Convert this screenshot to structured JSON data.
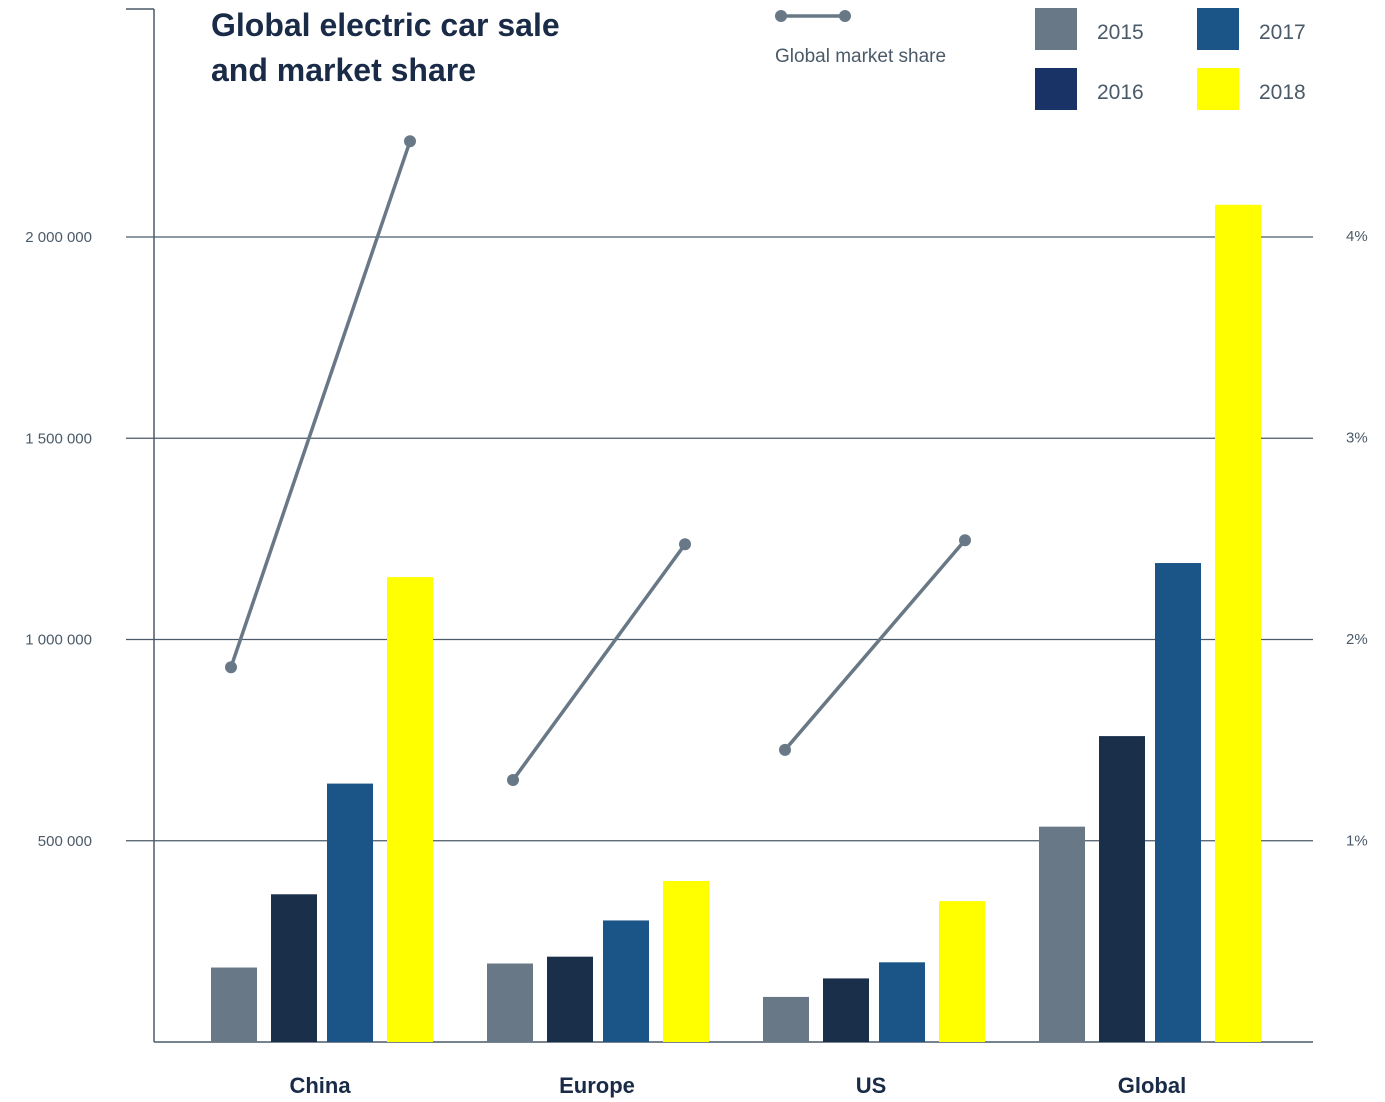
{
  "chart_data": {
    "type": "bar",
    "title_lines": [
      "Global electric car sale",
      "and market share"
    ],
    "categories": [
      "China",
      "Europe",
      "US",
      "Global"
    ],
    "series": [
      {
        "name": "2015",
        "values": [
          185000,
          195000,
          112000,
          535000
        ]
      },
      {
        "name": "2016",
        "values": [
          367000,
          212000,
          158000,
          760000
        ]
      },
      {
        "name": "2017",
        "values": [
          642000,
          302000,
          198000,
          1190000
        ]
      },
      {
        "name": "2018",
        "values": [
          1155000,
          400000,
          350000,
          2080000
        ]
      }
    ],
    "market_share": {
      "name": "Global market share",
      "lines": [
        {
          "category": "China",
          "start": 1.86,
          "end": 4.47
        },
        {
          "category": "Europe",
          "start": 1.3,
          "end": 2.47
        },
        {
          "category": "US",
          "start": 1.45,
          "end": 2.49
        }
      ]
    },
    "y_left": {
      "ticks": [
        500000,
        1000000,
        1500000,
        2000000
      ],
      "tick_labels": [
        "500 000",
        "1 000 000",
        "1 500 000",
        "2 000 000"
      ],
      "min": 0
    },
    "y_right": {
      "ticks": [
        1,
        2,
        3,
        4
      ],
      "tick_labels": [
        "1%",
        "2%",
        "3%",
        "4%"
      ],
      "min": 0
    },
    "grid": true,
    "legend_position": "top-right",
    "colors": {
      "2015": "#697886",
      "2016": "#1a2f4a",
      "2017": "#1b5588",
      "2018": "#ffff00",
      "legend_2016": "#1a3366",
      "line": "#697886",
      "axis": "#4a5a69",
      "text": "#1a2b47"
    }
  }
}
